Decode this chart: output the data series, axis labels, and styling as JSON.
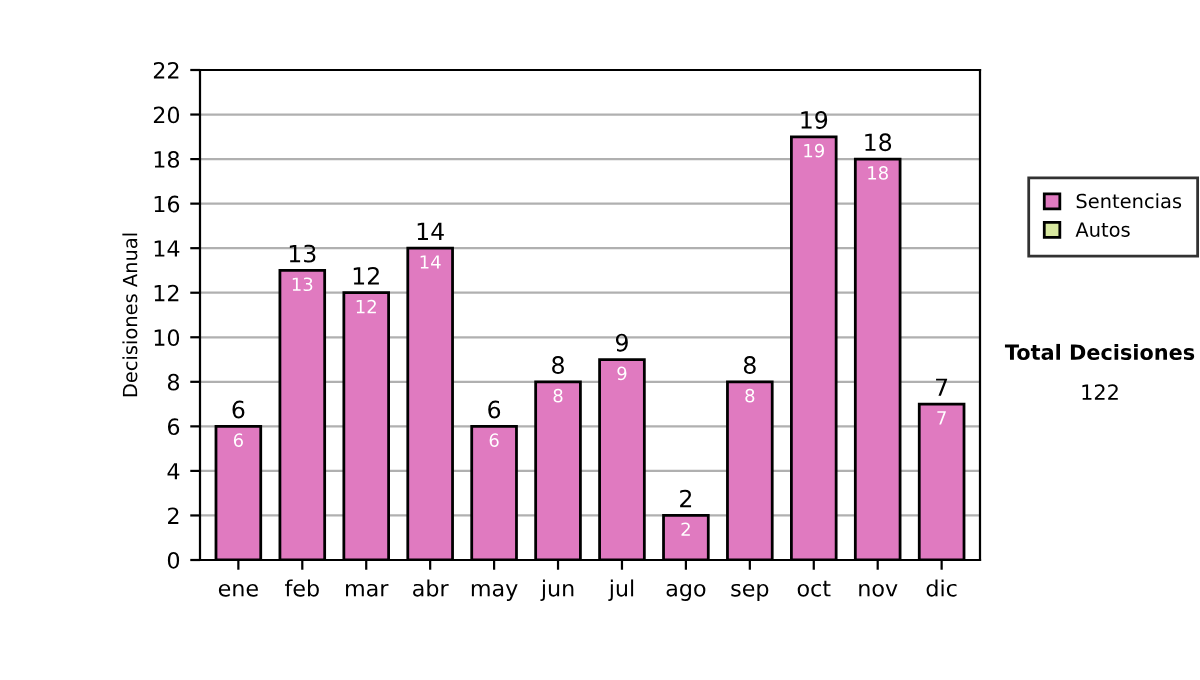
{
  "chart_data": {
    "type": "bar",
    "ylabel": "Decisiones Anual",
    "categories": [
      "ene",
      "feb",
      "mar",
      "abr",
      "may",
      "jun",
      "jul",
      "ago",
      "sep",
      "oct",
      "nov",
      "dic"
    ],
    "series": [
      {
        "name": "Sentencias",
        "color": "#e07ac0",
        "values": [
          6,
          13,
          12,
          14,
          6,
          8,
          9,
          2,
          8,
          19,
          18,
          7
        ],
        "value_labels": [
          "6",
          "13",
          "12",
          "14",
          "6",
          "8",
          "9",
          "2",
          "8",
          "19",
          "18",
          "7"
        ]
      },
      {
        "name": "Autos",
        "color": "#d8e8a0",
        "values": [
          null,
          null,
          null,
          null,
          null,
          null,
          null,
          null,
          null,
          null,
          null,
          null
        ]
      }
    ],
    "stacked": true,
    "totals": [
      "6",
      "13",
      "12",
      "14",
      "6",
      "8",
      "9",
      "2",
      "8",
      "19",
      "18",
      "7"
    ],
    "ylim": [
      0,
      22
    ],
    "yticks": [
      0,
      2,
      4,
      6,
      8,
      10,
      12,
      14,
      16,
      18,
      20,
      22
    ],
    "grid": "y",
    "legend": "right",
    "annotations": [
      "Total Decisiones",
      "122"
    ]
  }
}
